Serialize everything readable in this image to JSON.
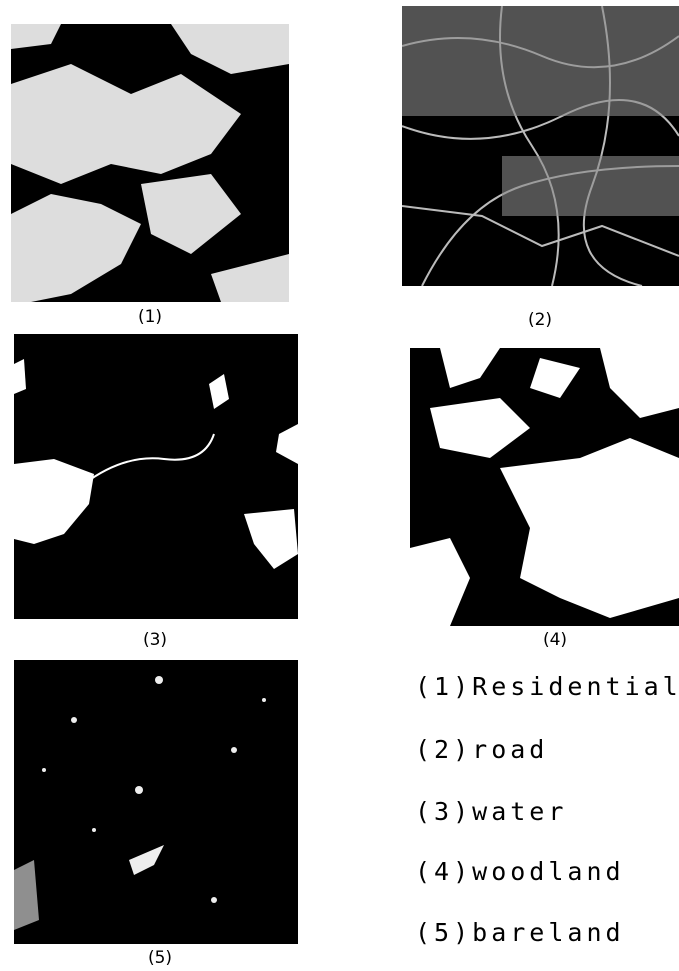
{
  "panels": [
    {
      "caption": "(1)"
    },
    {
      "caption": "(2)"
    },
    {
      "caption": "(3)"
    },
    {
      "caption": "(4)"
    },
    {
      "caption": "(5)"
    }
  ],
  "legend": [
    "(1)Residential",
    "(2)road",
    "(3)water",
    "(4)woodland",
    "(5)bareland"
  ]
}
